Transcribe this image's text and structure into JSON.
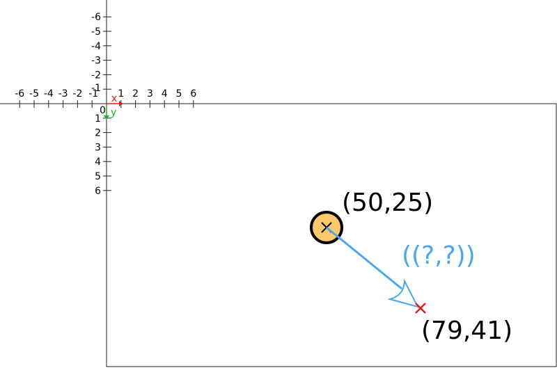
{
  "axes": {
    "x_ticks": [
      "-6",
      "-5",
      "-4",
      "-3",
      "-2",
      "-1",
      "1",
      "2",
      "3",
      "4",
      "5",
      "6"
    ],
    "x_tick_values": [
      -6,
      -5,
      -4,
      -3,
      -2,
      -1,
      1,
      2,
      3,
      4,
      5,
      6
    ],
    "y_ticks_up": [
      "-6",
      "-5",
      "-4",
      "-3",
      "-2",
      "-1"
    ],
    "y_ticks_up_values": [
      -6,
      -5,
      -4,
      -3,
      -2,
      -1
    ],
    "y_ticks_down": [
      "1",
      "2",
      "3",
      "4",
      "5",
      "6"
    ],
    "y_ticks_down_values": [
      1,
      2,
      3,
      4,
      5,
      6
    ],
    "origin_label": "0",
    "x_axis_label": "x",
    "y_axis_label": "y",
    "x_axis_color": "#e81c1c",
    "y_axis_color": "#19b31c"
  },
  "points": {
    "start_label": "(50,25)",
    "end_label": "(79,41)",
    "vector_label": "((?,?))"
  },
  "colors": {
    "circle_fill": "#fbc86a",
    "vector": "#4aa7ec",
    "vector_label": "#4aa7ec",
    "end_marker": "#e81c1c"
  }
}
